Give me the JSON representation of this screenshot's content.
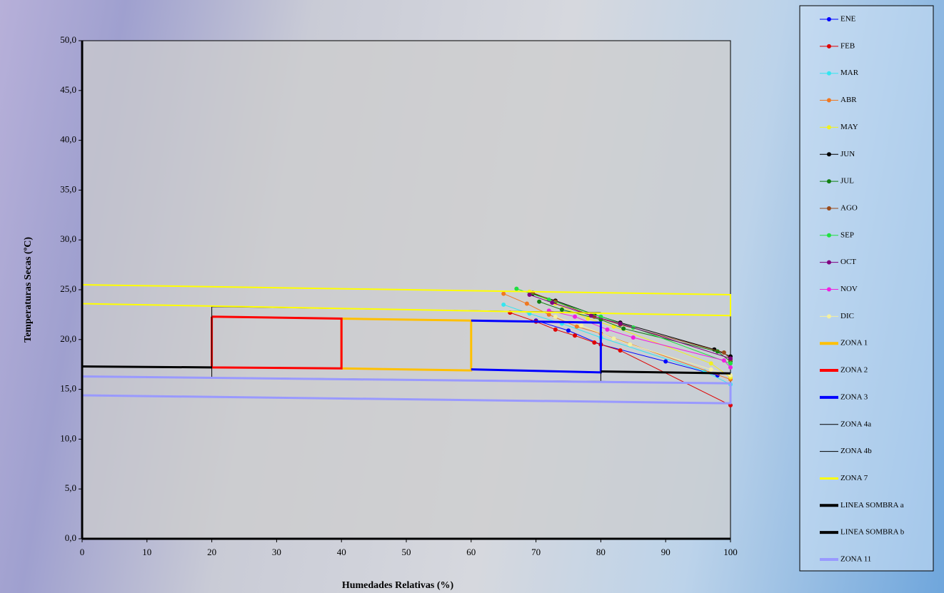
{
  "chart_data": {
    "type": "line",
    "x_label": "Humedades Relativas (%)",
    "y_label": "Temperaturas Secas (ºC)",
    "xlim": [
      0,
      100
    ],
    "ylim": [
      0,
      50
    ],
    "xticks": [
      0,
      10,
      20,
      30,
      40,
      50,
      60,
      70,
      80,
      90,
      100
    ],
    "yticks": [
      {
        "value": 0,
        "label": "0,0"
      },
      {
        "value": 5,
        "label": "5,0"
      },
      {
        "value": 10,
        "label": "10,0"
      },
      {
        "value": 15,
        "label": "15,0"
      },
      {
        "value": 20,
        "label": "20,0"
      },
      {
        "value": 25,
        "label": "25,0"
      },
      {
        "value": 30,
        "label": "30,0"
      },
      {
        "value": 35,
        "label": "35,0"
      },
      {
        "value": 40,
        "label": "40,0"
      },
      {
        "value": 45,
        "label": "45,0"
      },
      {
        "value": 50,
        "label": "50,0"
      }
    ],
    "legend": "right",
    "series": [
      {
        "name": "ENE",
        "color": "#0000ff",
        "width": 1,
        "marker": true,
        "x": [
          70,
          75,
          80,
          90,
          98
        ],
        "values": [
          21.9,
          20.9,
          19.5,
          17.8,
          16.4
        ]
      },
      {
        "name": "FEB",
        "color": "#e00000",
        "width": 1,
        "marker": true,
        "x": [
          66,
          70,
          73,
          76,
          79,
          80,
          83,
          100
        ],
        "values": [
          22.7,
          21.8,
          21.0,
          20.4,
          19.7,
          19.5,
          18.9,
          13.4
        ]
      },
      {
        "name": "MAR",
        "color": "#33e6f0",
        "width": 1,
        "marker": true,
        "x": [
          65,
          69,
          74,
          80,
          96,
          100
        ],
        "values": [
          23.5,
          22.6,
          21.6,
          20.2,
          16.8,
          15.5
        ]
      },
      {
        "name": "ABR",
        "color": "#f07820",
        "width": 1,
        "marker": true,
        "x": [
          65,
          68.6,
          72,
          76.3,
          80,
          100
        ],
        "values": [
          24.6,
          23.6,
          22.5,
          21.3,
          20.6,
          16.0
        ]
      },
      {
        "name": "MAY",
        "color": "#f0f020",
        "width": 1,
        "marker": true,
        "x": [
          69,
          73,
          78,
          82,
          97,
          100
        ],
        "values": [
          24.8,
          23.6,
          22.1,
          21.3,
          17.6,
          16.2
        ]
      },
      {
        "name": "JUN",
        "color": "#000000",
        "width": 1,
        "marker": true,
        "x": [
          69.5,
          73,
          79,
          83,
          97.5,
          100
        ],
        "values": [
          24.6,
          23.9,
          22.5,
          21.7,
          19.0,
          18.3
        ]
      },
      {
        "name": "JUL",
        "color": "#108010",
        "width": 1,
        "marker": true,
        "x": [
          70.5,
          74,
          80,
          83.5,
          98,
          100
        ],
        "values": [
          23.8,
          23.0,
          22.0,
          21.1,
          18.8,
          17.8
        ]
      },
      {
        "name": "AGO",
        "color": "#9a4a1a",
        "width": 1,
        "marker": true,
        "x": [
          69.5,
          73,
          79,
          83,
          99,
          100
        ],
        "values": [
          24.7,
          23.8,
          22.3,
          21.5,
          18.7,
          18.0
        ]
      },
      {
        "name": "SEP",
        "color": "#20e040",
        "width": 1,
        "marker": true,
        "x": [
          67,
          72,
          80,
          85,
          100
        ],
        "values": [
          25.1,
          24.0,
          22.3,
          21.2,
          17.6
        ]
      },
      {
        "name": "OCT",
        "color": "#800080",
        "width": 1,
        "marker": true,
        "x": [
          69,
          72.5,
          78.5,
          83,
          100
        ],
        "values": [
          24.5,
          23.7,
          22.4,
          21.6,
          18.1
        ]
      },
      {
        "name": "NOV",
        "color": "#f020e0",
        "width": 1,
        "marker": true,
        "x": [
          72,
          76,
          81,
          85,
          99,
          100
        ],
        "values": [
          22.9,
          22.3,
          21.0,
          20.2,
          17.9,
          17.2
        ]
      },
      {
        "name": "DIC",
        "color": "#f4f0a0",
        "width": 1,
        "marker": true,
        "x": [
          73,
          77,
          82,
          84.5,
          97,
          100
        ],
        "values": [
          22.3,
          21.4,
          20.1,
          19.5,
          17.0,
          16.4
        ]
      },
      {
        "name": "ZONA 1",
        "color": "#ffc000",
        "width": 3,
        "marker": false,
        "x": [
          40,
          60,
          60,
          40,
          40
        ],
        "values": [
          22.1,
          21.9,
          16.9,
          17.1,
          22.1
        ]
      },
      {
        "name": "ZONA 2",
        "color": "#ff0000",
        "width": 3,
        "marker": false,
        "x": [
          20,
          40,
          40,
          20,
          20
        ],
        "values": [
          22.3,
          22.1,
          17.1,
          17.2,
          22.3
        ]
      },
      {
        "name": "ZONA 3",
        "color": "#0000ff",
        "width": 3,
        "marker": false,
        "x": [
          60,
          80,
          80,
          60
        ],
        "values": [
          21.9,
          21.7,
          16.7,
          17.0
        ]
      },
      {
        "name": "ZONA 4a",
        "color": "#000000",
        "width": 1,
        "marker": false,
        "x": [
          80,
          20,
          20,
          80,
          80
        ],
        "values": [
          22.7,
          23.3,
          16.2,
          15.8,
          16.7
        ]
      },
      {
        "name": "ZONA 4b",
        "color": "#000000",
        "width": 1,
        "marker": false,
        "x": [
          80,
          100
        ],
        "values": [
          15.8,
          15.6
        ]
      },
      {
        "name": "ZONA 7",
        "color": "#ffff00",
        "width": 2,
        "marker": false,
        "x": [
          0,
          100,
          100,
          0,
          0
        ],
        "values": [
          25.5,
          24.5,
          22.4,
          23.6,
          25.5
        ]
      },
      {
        "name": "LINEA SOMBRA a",
        "color": "#000000",
        "width": 3,
        "marker": false,
        "x": [
          0,
          20
        ],
        "values": [
          17.3,
          17.2
        ]
      },
      {
        "name": "LINEA SOMBRA b",
        "color": "#000000",
        "width": 3,
        "marker": false,
        "x": [
          80,
          100
        ],
        "values": [
          16.8,
          16.6
        ]
      },
      {
        "name": "ZONA 11",
        "color": "#9999ff",
        "width": 3,
        "marker": false,
        "x": [
          0,
          100,
          100,
          0,
          0
        ],
        "values": [
          16.3,
          15.6,
          13.6,
          14.4,
          16.3
        ]
      }
    ]
  }
}
